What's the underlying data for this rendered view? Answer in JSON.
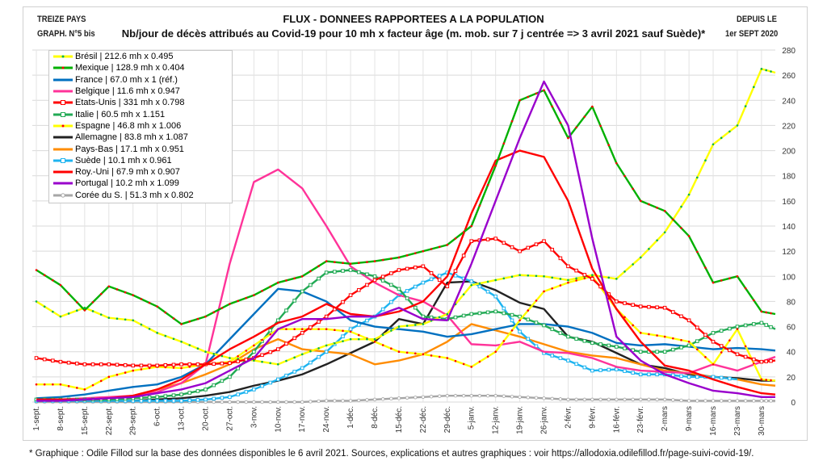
{
  "header": {
    "left_line1": "TREIZE PAYS",
    "left_line2": "GRAPH. N°5 bis",
    "right_line1": "DEPUIS LE",
    "right_line2": "1er SEPT 2020"
  },
  "footer": "* Graphique : Odile Fillod sur la base des données disponibles le 6 avril 2021. Sources, explications et autres graphiques : voir https://allodoxia.odilefillod.fr/page-suivi-covid-19/.",
  "chart_data": {
    "type": "line",
    "title": "FLUX - DONNEES RAPPORTEES A LA POPULATION",
    "subtitle": "Nb/jour de décès attribués au Covid-19 pour 10 mh x facteur âge (m. mob. sur 7 j centrée => 3 avril 2021 sauf Suède)*",
    "ylim": [
      0,
      280
    ],
    "yticks": [
      0,
      20,
      40,
      60,
      80,
      100,
      120,
      140,
      160,
      180,
      200,
      220,
      240,
      260,
      280
    ],
    "grid": true,
    "legend_position": "top-left",
    "x_tick_labels": [
      "1-sept.",
      "8-sept.",
      "15-sept.",
      "22-sept.",
      "29-sept.",
      "6-oct.",
      "13-oct.",
      "20-oct.",
      "27-oct.",
      "3-nov.",
      "10-nov.",
      "17-nov.",
      "24-nov.",
      "1-déc.",
      "8-déc.",
      "15-déc.",
      "22-déc.",
      "29-déc.",
      "5-janv.",
      "12-janv.",
      "19-janv.",
      "26-janv.",
      "2-févr.",
      "9-févr.",
      "16-févr.",
      "23-févr.",
      "2-mars",
      "9-mars",
      "16-mars",
      "23-mars",
      "30-mars"
    ],
    "x": [
      "2020-09-01",
      "2020-09-08",
      "2020-09-15",
      "2020-09-22",
      "2020-09-29",
      "2020-10-06",
      "2020-10-13",
      "2020-10-20",
      "2020-10-27",
      "2020-11-03",
      "2020-11-10",
      "2020-11-17",
      "2020-11-24",
      "2020-12-01",
      "2020-12-08",
      "2020-12-15",
      "2020-12-22",
      "2020-12-29",
      "2021-01-05",
      "2021-01-12",
      "2021-01-19",
      "2021-01-26",
      "2021-02-02",
      "2021-02-09",
      "2021-02-16",
      "2021-02-23",
      "2021-03-02",
      "2021-03-09",
      "2021-03-16",
      "2021-03-23",
      "2021-03-30",
      "2021-04-03"
    ],
    "series": [
      {
        "name": "Brésil | 212.6 mh x 0.495",
        "color": "#ffff00",
        "marker": "dot",
        "marker_color": "#00b050",
        "values": [
          80,
          68,
          75,
          67,
          65,
          55,
          48,
          40,
          35,
          33,
          30,
          38,
          45,
          50,
          50,
          60,
          62,
          70,
          93,
          97,
          101,
          100,
          97,
          101,
          98,
          115,
          135,
          165,
          205,
          220,
          265,
          262
        ]
      },
      {
        "name": "Mexique | 128.9 mh x 0.404",
        "color": "#00b000",
        "marker": "dot",
        "marker_color": "#ff0000",
        "values": [
          105,
          93,
          73,
          92,
          85,
          76,
          62,
          68,
          78,
          85,
          95,
          100,
          112,
          110,
          112,
          115,
          120,
          125,
          140,
          188,
          240,
          248,
          210,
          235,
          190,
          160,
          152,
          132,
          95,
          100,
          72,
          70
        ]
      },
      {
        "name": "France | 67.0 mh x 1 (réf.)",
        "color": "#0070c0",
        "marker": "none",
        "values": [
          3,
          4,
          6,
          9,
          12,
          14,
          20,
          30,
          50,
          70,
          90,
          88,
          80,
          65,
          60,
          58,
          56,
          52,
          54,
          58,
          62,
          62,
          60,
          55,
          47,
          45,
          46,
          44,
          42,
          43,
          42,
          41
        ]
      },
      {
        "name": "Belgique | 11.6 mh x 0.947",
        "color": "#ff3399",
        "marker": "none",
        "values": [
          2,
          2,
          3,
          4,
          5,
          8,
          15,
          30,
          110,
          175,
          185,
          170,
          140,
          108,
          95,
          85,
          80,
          69,
          46,
          45,
          48,
          40,
          39,
          35,
          28,
          25,
          24,
          23,
          30,
          25,
          32,
          36
        ]
      },
      {
        "name": "Etats-Unis | 331 mh x 0.798",
        "color": "#ff0000",
        "marker": "square",
        "marker_color": "#ff0000",
        "values": [
          35,
          32,
          30,
          30,
          29,
          29,
          30,
          30,
          31,
          35,
          42,
          55,
          68,
          85,
          97,
          105,
          108,
          92,
          128,
          130,
          120,
          128,
          108,
          98,
          80,
          76,
          75,
          65,
          48,
          38,
          32,
          33
        ]
      },
      {
        "name": "Italie | 60.5 mh x 1.151",
        "color": "#22aa55",
        "marker": "square",
        "marker_color": "#22aa55",
        "values": [
          2,
          2,
          2,
          2,
          3,
          4,
          6,
          10,
          20,
          40,
          65,
          88,
          103,
          105,
          100,
          90,
          68,
          66,
          70,
          72,
          68,
          61,
          52,
          47,
          44,
          40,
          40,
          45,
          55,
          60,
          63,
          58
        ]
      },
      {
        "name": "Espagne | 46.8 mh x 1.006",
        "color": "#ffff00",
        "marker": "dot",
        "marker_color": "#ff0000",
        "values": [
          14,
          14,
          10,
          20,
          25,
          28,
          27,
          30,
          32,
          45,
          58,
          58,
          58,
          56,
          48,
          40,
          38,
          35,
          28,
          40,
          65,
          88,
          95,
          100,
          74,
          55,
          52,
          48,
          30,
          58,
          18,
          17
        ]
      },
      {
        "name": "Allemagne | 83.8 mh x 1.087",
        "color": "#222222",
        "marker": "none",
        "values": [
          1,
          1,
          1,
          1,
          1,
          2,
          3,
          5,
          8,
          13,
          17,
          22,
          30,
          39,
          48,
          66,
          62,
          95,
          96,
          89,
          79,
          74,
          52,
          48,
          39,
          30,
          27,
          22,
          20,
          19,
          17,
          17
        ]
      },
      {
        "name": "Pays-Bas | 17.1 mh x 0.951",
        "color": "#ff8c00",
        "marker": "none",
        "values": [
          2,
          2,
          2,
          3,
          5,
          10,
          15,
          22,
          30,
          42,
          50,
          42,
          40,
          38,
          30,
          33,
          38,
          48,
          62,
          57,
          52,
          46,
          40,
          37,
          35,
          30,
          25,
          23,
          20,
          18,
          14,
          13
        ]
      },
      {
        "name": "Suède | 10.1 mh x 0.961",
        "color": "#1eb4f0",
        "marker": "square",
        "marker_color": "#1eb4f0",
        "values": [
          1,
          1,
          1,
          1,
          1,
          1,
          1,
          2,
          4,
          10,
          18,
          27,
          40,
          58,
          68,
          85,
          95,
          103,
          96,
          84,
          56,
          39,
          33,
          25,
          26,
          22,
          22,
          20,
          20,
          18,
          null,
          null
        ]
      },
      {
        "name": "Roy.-Uni | 67.9 mh x 0.907",
        "color": "#ff0000",
        "marker": "none",
        "values": [
          2,
          2,
          2,
          3,
          5,
          10,
          18,
          30,
          42,
          52,
          63,
          68,
          78,
          70,
          68,
          72,
          80,
          100,
          150,
          192,
          200,
          195,
          160,
          106,
          74,
          48,
          29,
          25,
          18,
          12,
          7,
          6
        ]
      },
      {
        "name": "Portugal | 10.2 mh x 1.099",
        "color": "#9900cc",
        "marker": "none",
        "values": [
          1,
          1,
          2,
          3,
          4,
          7,
          10,
          15,
          25,
          35,
          58,
          66,
          66,
          68,
          68,
          75,
          66,
          65,
          110,
          160,
          210,
          255,
          220,
          130,
          52,
          33,
          22,
          15,
          9,
          7,
          4,
          4
        ]
      },
      {
        "name": "Corée du S. | 51.3 mh x 0.802",
        "color": "#a6a6a6",
        "marker": "circle",
        "marker_color": "#a6a6a6",
        "values": [
          0,
          0,
          0,
          0,
          0,
          0,
          0,
          0,
          0,
          0,
          0,
          0,
          1,
          1,
          2,
          3,
          4,
          5,
          5,
          5,
          4,
          3,
          2,
          2,
          2,
          2,
          2,
          1,
          1,
          1,
          1,
          1
        ]
      }
    ]
  }
}
